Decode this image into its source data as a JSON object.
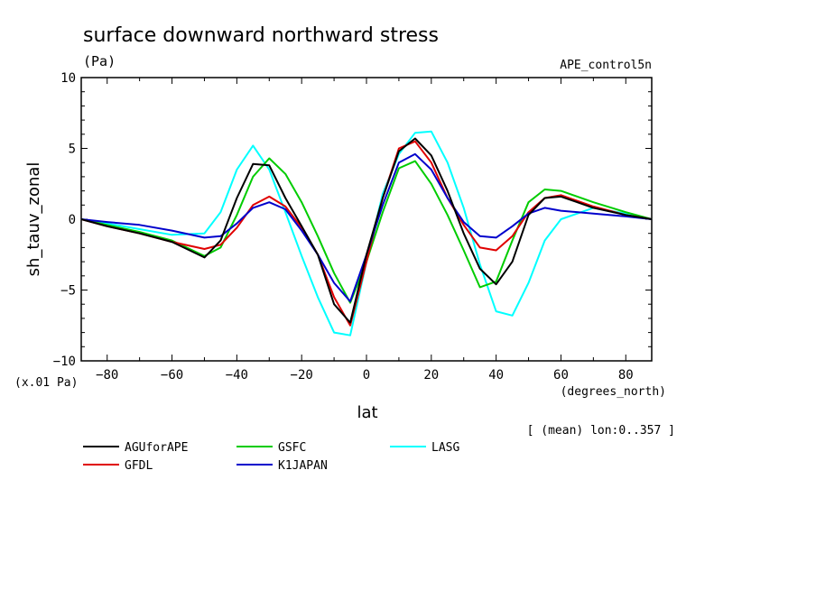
{
  "chart_data": {
    "type": "line",
    "title": "surface downward northward stress",
    "units_label": "(Pa)",
    "run_label": "APE_control5n",
    "ylabel": "sh_tauv_zonal",
    "xlabel": "lat",
    "x_units": "(degrees_north)",
    "y_scale_note": "(x.01 Pa)",
    "mean_note": "[ (mean) lon:0..357 ]",
    "xlim": [
      -88,
      88
    ],
    "ylim": [
      -10,
      10
    ],
    "x_ticks": [
      -80,
      -60,
      -40,
      -20,
      0,
      20,
      40,
      60,
      80
    ],
    "y_ticks": [
      -10,
      -5,
      0,
      5,
      10
    ],
    "x": [
      -88,
      -80,
      -70,
      -60,
      -50,
      -45,
      -40,
      -35,
      -30,
      -25,
      -20,
      -15,
      -10,
      -5,
      0,
      5,
      10,
      15,
      20,
      25,
      30,
      35,
      40,
      45,
      50,
      55,
      60,
      70,
      80,
      88
    ],
    "series": [
      {
        "name": "AGUforAPE",
        "color": "#000000",
        "values": [
          0,
          -0.5,
          -1.0,
          -1.6,
          -2.7,
          -1.5,
          1.5,
          3.9,
          3.8,
          1.5,
          -0.5,
          -2.5,
          -6.0,
          -7.3,
          -2.5,
          1.5,
          4.8,
          5.7,
          4.5,
          2.0,
          -1.0,
          -3.5,
          -4.6,
          -3.0,
          0.3,
          1.5,
          1.6,
          0.8,
          0.3,
          0
        ]
      },
      {
        "name": "GFDL",
        "color": "#e00000",
        "values": [
          0,
          -0.5,
          -1.0,
          -1.6,
          -2.1,
          -1.8,
          -0.6,
          1.0,
          1.6,
          0.9,
          -0.6,
          -2.5,
          -5.5,
          -7.5,
          -3.0,
          1.5,
          5.0,
          5.5,
          4.0,
          1.5,
          -0.4,
          -2.0,
          -2.2,
          -1.2,
          0.5,
          1.5,
          1.7,
          0.9,
          0.3,
          0
        ]
      },
      {
        "name": "GSFC",
        "color": "#00cc00",
        "values": [
          0,
          -0.4,
          -0.9,
          -1.5,
          -2.6,
          -2.0,
          0.3,
          3.0,
          4.3,
          3.2,
          1.2,
          -1.2,
          -3.8,
          -5.9,
          -3.0,
          0.5,
          3.6,
          4.1,
          2.5,
          0.3,
          -2.2,
          -4.8,
          -4.4,
          -1.5,
          1.2,
          2.1,
          2.0,
          1.2,
          0.5,
          0
        ]
      },
      {
        "name": "LASG",
        "color": "#00ffff",
        "values": [
          0,
          -0.3,
          -0.7,
          -1.1,
          -1.0,
          0.5,
          3.5,
          5.2,
          3.5,
          0.5,
          -2.6,
          -5.5,
          -8.0,
          -8.2,
          -3.0,
          1.8,
          4.6,
          6.1,
          6.2,
          4.0,
          0.8,
          -3.2,
          -6.5,
          -6.8,
          -4.5,
          -1.5,
          0.0,
          0.8,
          0.4,
          0
        ]
      },
      {
        "name": "K1JAPAN",
        "color": "#0000cc",
        "values": [
          0,
          -0.2,
          -0.4,
          -0.8,
          -1.3,
          -1.2,
          -0.3,
          0.8,
          1.2,
          0.7,
          -0.8,
          -2.5,
          -4.5,
          -5.8,
          -2.5,
          1.0,
          4.0,
          4.6,
          3.5,
          1.5,
          -0.2,
          -1.2,
          -1.3,
          -0.5,
          0.4,
          0.8,
          0.6,
          0.4,
          0.2,
          0
        ]
      }
    ],
    "legend_order": [
      "AGUforAPE",
      "GSFC",
      "LASG",
      "GFDL",
      "K1JAPAN"
    ]
  }
}
